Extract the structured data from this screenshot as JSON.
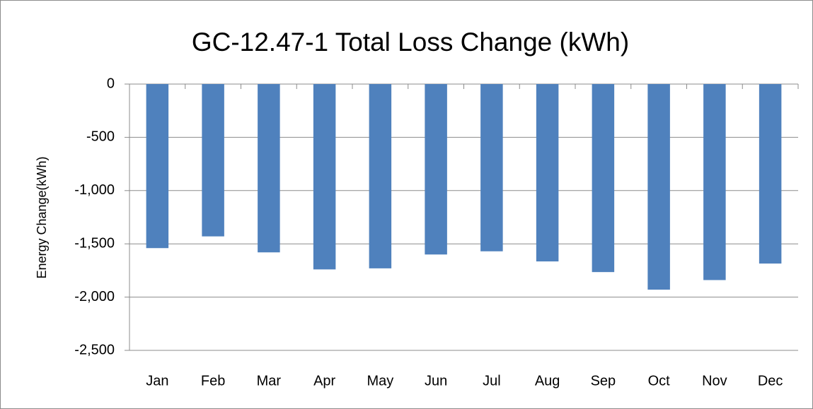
{
  "chart_data": {
    "type": "bar",
    "title": "GC-12.47-1 Total Loss Change (kWh)",
    "ylabel": "Energy Change(kWh)",
    "categories": [
      "Jan",
      "Feb",
      "Mar",
      "Apr",
      "May",
      "Jun",
      "Jul",
      "Aug",
      "Sep",
      "Oct",
      "Nov",
      "Dec"
    ],
    "values": [
      -1540,
      -1430,
      -1580,
      -1740,
      -1730,
      -1600,
      -1570,
      -1665,
      -1765,
      -1930,
      -1840,
      -1685
    ],
    "color": "#4f81bd",
    "ylim": [
      -2500,
      0
    ],
    "yticks": [
      0,
      -500,
      {
        "value": -1000,
        "label": "-1,000"
      },
      {
        "value": -1500,
        "label": "-1,500"
      },
      {
        "value": -2000,
        "label": "-2,000"
      },
      {
        "value": -2500,
        "label": "-2,500"
      }
    ],
    "grid": true
  }
}
